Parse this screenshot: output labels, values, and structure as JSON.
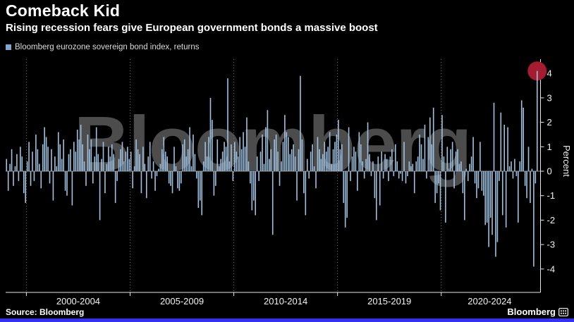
{
  "header": {
    "title": "Comeback Kid",
    "subtitle": "Rising recession fears give European government bonds a massive boost"
  },
  "legend": {
    "label": "Bloomberg eurozone sovereign bond index, returns"
  },
  "watermark": "Bloomberg",
  "y_axis_title": "Percent",
  "footer": {
    "source": "Source: Bloomberg",
    "brand": "Bloomberg"
  },
  "colors": {
    "background": "#000000",
    "bar": "#9fc1e0",
    "legend_swatch": "#7fa6cc",
    "grid_dotted": "#6f6f6f",
    "zero_line": "#8a8a8a",
    "axis": "#e8e8e8",
    "tick_text": "#f2f2f2",
    "watermark": "#4c4c4c",
    "highlight_circle": "#a51c30",
    "bottom_strip": "#3232f0"
  },
  "chart_data": {
    "type": "bar",
    "series_name": "Bloomberg eurozone sovereign bond index, returns",
    "frequency": "monthly",
    "start": "1999-01",
    "unit": "percent",
    "ylabel": "Percent",
    "ylim": [
      -4.5,
      4.6
    ],
    "y_ticks": [
      4,
      3,
      2,
      1,
      0,
      -1,
      -2,
      -3,
      -4
    ],
    "y_axis_position": "right",
    "grid": "vertical-dotted",
    "legend_position": "top-left",
    "x_group_labels": [
      "2000-2004",
      "2005-2009",
      "2010-2014",
      "2015-2019",
      "2020-2024"
    ],
    "x_gridline_indices": [
      12,
      72,
      132,
      192,
      252
    ],
    "highlight": {
      "index": 307,
      "value": 4.1,
      "note": "latest month circled in red"
    },
    "values": [
      0.5,
      -0.8,
      0.3,
      0.9,
      -0.6,
      0.2,
      0.7,
      -0.4,
      1.0,
      0.6,
      -0.9,
      -1.3,
      0.4,
      1.2,
      -0.6,
      0.8,
      -0.4,
      1.5,
      0.9,
      0.3,
      -0.7,
      1.1,
      1.8,
      1.4,
      1.0,
      -0.5,
      0.9,
      -1.2,
      0.6,
      0.2,
      1.6,
      1.1,
      0.5,
      1.3,
      -0.8,
      -1.0,
      0.7,
      0.9,
      -1.4,
      1.2,
      0.8,
      1.7,
      1.3,
      1.9,
      1.1,
      0.4,
      -0.6,
      1.5,
      0.9,
      1.3,
      -0.5,
      0.6,
      1.8,
      0.7,
      -2.0,
      0.5,
      1.2,
      -0.9,
      0.3,
      1.0,
      0.6,
      1.1,
      0.7,
      -1.3,
      -0.4,
      0.5,
      0.9,
      1.2,
      0.4,
      0.8,
      1.0,
      0.5,
      0.8,
      -0.7,
      0.2,
      1.3,
      0.9,
      0.7,
      -0.9,
      1.0,
      0.3,
      -1.1,
      0.6,
      1.2,
      -0.3,
      0.4,
      -0.8,
      -0.2,
      0.1,
      0.3,
      0.9,
      1.4,
      0.8,
      0.6,
      -0.5,
      -0.6,
      -0.9,
      1.0,
      0.2,
      -0.7,
      -0.8,
      -0.5,
      1.1,
      1.3,
      0.6,
      0.9,
      1.8,
      0.2,
      1.5,
      0.7,
      -0.3,
      -1.5,
      -1.2,
      -1.8,
      0.4,
      1.2,
      0.6,
      1.4,
      3.0,
      2.1,
      -1.0,
      -0.6,
      1.3,
      0.2,
      0.5,
      0.8,
      1.2,
      1.0,
      3.8,
      0.4,
      1.1,
      -0.4,
      1.2,
      0.8,
      0.6,
      1.4,
      0.9,
      1.6,
      1.0,
      2.2,
      0.4,
      -0.5,
      -1.6,
      -1.2,
      -1.8,
      0.6,
      -0.4,
      0.8,
      1.5,
      0.3,
      1.8,
      2.5,
      0.5,
      0.9,
      -2.6,
      1.3,
      1.5,
      0.8,
      -0.6,
      0.4,
      1.2,
      2.3,
      1.6,
      1.4,
      0.7,
      0.9,
      1.1,
      0.6,
      -1.2,
      0.9,
      3.9,
      1.3,
      -0.9,
      -1.8,
      0.5,
      -0.3,
      0.8,
      1.1,
      0.2,
      -0.7,
      1.4,
      0.9,
      0.5,
      0.7,
      1.2,
      0.8,
      1.0,
      1.6,
      0.3,
      0.9,
      1.2,
      1.5,
      2.1,
      0.9,
      1.1,
      -1.3,
      -2.3,
      -1.9,
      1.8,
      -0.4,
      0.6,
      1.0,
      0.8,
      -0.8,
      1.6,
      1.1,
      0.4,
      -0.3,
      0.5,
      2.0,
      0.7,
      -0.2,
      0.4,
      -1.1,
      -2.0,
      0.6,
      -1.4,
      0.8,
      -0.3,
      0.7,
      0.5,
      -0.4,
      0.6,
      0.9,
      -0.2,
      1.1,
      0.4,
      -0.3,
      -0.1,
      -0.4,
      1.2,
      -0.5,
      -0.2,
      0.4,
      0.2,
      0.3,
      -0.9,
      0.4,
      0.6,
      1.5,
      1.1,
      0.5,
      1.9,
      -0.3,
      1.4,
      2.2,
      1.1,
      2.6,
      -1.3,
      -0.9,
      -0.5,
      -1.6,
      2.3,
      0.6,
      -2.1,
      1.0,
      0.1,
      0.9,
      1.2,
      -0.7,
      0.8,
      0.9,
      0.3,
      0.4,
      -0.9,
      -2.0,
      0.1,
      -0.4,
      0.3,
      0.6,
      1.4,
      -0.5,
      -1.1,
      -0.7,
      1.2,
      -0.8,
      -1.0,
      -2.2,
      -2.1,
      -3.1,
      -1.9,
      -2.6,
      2.8,
      -3.5,
      -2.9,
      -0.4,
      2.4,
      -1.8,
      1.9,
      -2.3,
      1.8,
      0.2,
      0.4,
      -0.3,
      0.5,
      -0.2,
      -2.1,
      0.4,
      2.9,
      2.6,
      -0.6,
      -1.1,
      1.0,
      -1.3,
      0.1,
      -3.9,
      -0.5,
      4.1
    ]
  }
}
